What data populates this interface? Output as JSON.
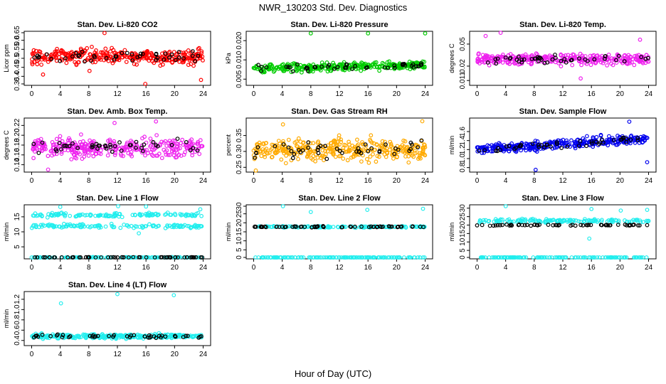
{
  "figure": {
    "title": "NWR_130203  Std. Dev. Diagnostics",
    "xlabel": "Hour of Day (UTC)"
  },
  "chart_data": [
    {
      "type": "scatter",
      "title": "Stan. Dev. Li-820 CO2",
      "ylabel": "Licor ppm",
      "xlim": [
        0,
        24
      ],
      "ylim": [
        0.35,
        0.65
      ],
      "xticks": [
        0,
        4,
        8,
        12,
        16,
        20,
        24
      ],
      "yticks": [
        "0.35",
        "0.4",
        "0.45",
        "0.5",
        "0.55",
        "0.6",
        "0.65"
      ],
      "ytick_values": [
        0.35,
        0.4,
        0.45,
        0.5,
        0.55,
        0.6,
        0.65
      ],
      "ylog": false,
      "color": "#ff0000",
      "mean": 0.51,
      "spread": 0.04,
      "n": 330,
      "trend": 0,
      "outliers": [
        {
          "x": 10.2,
          "y": 0.64
        },
        {
          "x": 15.9,
          "y": 0.35
        },
        {
          "x": 23.7,
          "y": 0.38
        },
        {
          "x": 1.6,
          "y": 0.41
        },
        {
          "x": 8.1,
          "y": 0.43
        }
      ]
    },
    {
      "type": "scatter",
      "title": "Stan. Dev. Li-820 Pressure",
      "ylabel": "kPa",
      "xlim": [
        0,
        24
      ],
      "ylim": [
        0.004,
        0.028
      ],
      "xticks": [
        0,
        4,
        8,
        12,
        16,
        20,
        24
      ],
      "yticks": [
        "0.005",
        "0.010",
        "0.020"
      ],
      "ytick_values": [
        0.005,
        0.01,
        0.02
      ],
      "ylog": true,
      "color": "#00cc00",
      "mean": 0.0072,
      "spread": 0.0011,
      "n": 330,
      "trend": 0.0012,
      "outliers": [
        {
          "x": 8.0,
          "y": 0.026
        },
        {
          "x": 16.0,
          "y": 0.026
        },
        {
          "x": 24.0,
          "y": 0.026
        }
      ]
    },
    {
      "type": "scatter",
      "title": "Stan. Dev. Li-820 Temp.",
      "ylabel": "degrees C",
      "xlim": [
        0,
        24
      ],
      "ylim": [
        0.009,
        0.085
      ],
      "xticks": [
        0,
        4,
        8,
        12,
        16,
        20,
        24
      ],
      "yticks": [
        "0.011",
        "0.02",
        "0.05"
      ],
      "ytick_values": [
        0.011,
        0.02,
        0.05
      ],
      "ylog": true,
      "color": "#ee22ee",
      "mean": 0.027,
      "spread": 0.006,
      "n": 330,
      "trend": 0,
      "outliers": [
        {
          "x": 1.2,
          "y": 0.07
        },
        {
          "x": 3.3,
          "y": 0.08
        },
        {
          "x": 14.5,
          "y": 0.012
        },
        {
          "x": 22.8,
          "y": 0.06
        }
      ]
    },
    {
      "type": "scatter",
      "title": "Stan. Dev. Amb. Box Temp.",
      "ylabel": "degrees C",
      "xlim": [
        0,
        24
      ],
      "ylim": [
        0.125,
        0.235
      ],
      "xticks": [
        0,
        4,
        8,
        12,
        16,
        20,
        24
      ],
      "yticks": [
        "0.14",
        "0.16",
        "0.18",
        "0.20",
        "0.22"
      ],
      "ytick_values": [
        0.14,
        0.16,
        0.18,
        0.2,
        0.22
      ],
      "ylog": false,
      "color": "#ee22ee",
      "mean": 0.175,
      "spread": 0.018,
      "n": 330,
      "trend": 0,
      "outliers": [
        {
          "x": 2.3,
          "y": 0.13
        },
        {
          "x": 11.6,
          "y": 0.225
        },
        {
          "x": 17.4,
          "y": 0.228
        }
      ]
    },
    {
      "type": "scatter",
      "title": "Stan. Dev. Gas Stream RH",
      "ylabel": "percent",
      "xlim": [
        0,
        24
      ],
      "ylim": [
        0.235,
        0.405
      ],
      "xticks": [
        0,
        4,
        8,
        12,
        16,
        20,
        24
      ],
      "yticks": [
        "0.25",
        "0.30",
        "0.35"
      ],
      "ytick_values": [
        0.25,
        0.3,
        0.35
      ],
      "ylog": false,
      "color": "#ffaa00",
      "mean": 0.305,
      "spread": 0.032,
      "n": 360,
      "trend": 0,
      "outliers": [
        {
          "x": 4.1,
          "y": 0.385
        },
        {
          "x": 23.6,
          "y": 0.395
        },
        {
          "x": 0.3,
          "y": 0.24
        }
      ]
    },
    {
      "type": "scatter",
      "title": "Stan. Dev. Sample Flow",
      "ylabel": "ml/min",
      "xlim": [
        0,
        24
      ],
      "ylim": [
        0.7,
        1.9
      ],
      "xticks": [
        0,
        4,
        8,
        12,
        16,
        20,
        24
      ],
      "yticks": [
        "0.8",
        "1.0",
        "1.2",
        "1.4",
        "1.6"
      ],
      "ytick_values": [
        0.8,
        1.0,
        1.2,
        1.4,
        1.6
      ],
      "ylog": false,
      "color": "#0000ee",
      "mean": 1.2,
      "spread": 0.1,
      "n": 330,
      "trend": 0.25,
      "outliers": [
        {
          "x": 8.2,
          "y": 0.75
        },
        {
          "x": 21.3,
          "y": 1.82
        },
        {
          "x": 23.8,
          "y": 0.92
        }
      ]
    },
    {
      "type": "scatter",
      "title": "Stan. Dev. Line 1 Flow",
      "ylabel": "ml/min",
      "xlim": [
        0,
        24
      ],
      "ylim": [
        1,
        19
      ],
      "xticks": [
        0,
        4,
        8,
        12,
        16,
        20,
        24
      ],
      "yticks": [
        "5",
        "10",
        "15"
      ],
      "ytick_values": [
        5,
        10,
        15
      ],
      "ylog": false,
      "color": "#22eeee",
      "bands": [
        {
          "mean": 15.6,
          "spread": 0.7,
          "n": 130
        },
        {
          "mean": 11.9,
          "spread": 0.6,
          "n": 130
        },
        {
          "mean": 1.4,
          "spread": 0.15,
          "n": 120
        }
      ],
      "black_band": 1.5,
      "outliers": [
        {
          "x": 4.0,
          "y": 18.3
        },
        {
          "x": 12.1,
          "y": 18.6
        },
        {
          "x": 16.0,
          "y": 18.4
        },
        {
          "x": 15.0,
          "y": 9.5
        },
        {
          "x": 23.6,
          "y": 17.5
        }
      ]
    },
    {
      "type": "scatter",
      "title": "Stan. Dev. Line 2 Flow",
      "ylabel": "ml/min",
      "xlim": [
        0,
        24
      ],
      "ylim": [
        0,
        30
      ],
      "xticks": [
        0,
        4,
        8,
        12,
        16,
        20,
        24
      ],
      "yticks": [
        "0",
        "5",
        "10",
        "15",
        "20",
        "25",
        "30"
      ],
      "ytick_values": [
        0,
        5,
        10,
        15,
        20,
        25,
        30
      ],
      "ylog": false,
      "color": "#22eeee",
      "bands": [
        {
          "mean": 17.8,
          "spread": 0.4,
          "n": 140
        },
        {
          "mean": 0.3,
          "spread": 0.15,
          "n": 140
        }
      ],
      "black_band": 17.8,
      "outliers": [
        {
          "x": 4.1,
          "y": 29.5
        },
        {
          "x": 8.0,
          "y": 26.0
        },
        {
          "x": 15.9,
          "y": 27.2
        },
        {
          "x": 23.7,
          "y": 27.8
        }
      ]
    },
    {
      "type": "scatter",
      "title": "Stan. Dev. Line 3 Flow",
      "ylabel": "ml/min",
      "xlim": [
        0,
        24
      ],
      "ylim": [
        0,
        32
      ],
      "xticks": [
        0,
        4,
        8,
        12,
        16,
        20,
        24
      ],
      "yticks": [
        "0",
        "5",
        "10",
        "15",
        "20",
        "25",
        "30"
      ],
      "ytick_values": [
        0,
        5,
        10,
        15,
        20,
        25,
        30
      ],
      "ylog": false,
      "color": "#22eeee",
      "bands": [
        {
          "mean": 22.5,
          "spread": 1.0,
          "n": 150
        },
        {
          "mean": 0.4,
          "spread": 0.15,
          "n": 140
        }
      ],
      "black_band": 20.0,
      "outliers": [
        {
          "x": 4.0,
          "y": 31.5
        },
        {
          "x": 15.7,
          "y": 12.0
        },
        {
          "x": 16.0,
          "y": 29.5
        },
        {
          "x": 20.1,
          "y": 28.6
        },
        {
          "x": 23.8,
          "y": 29.0
        }
      ]
    },
    {
      "type": "scatter",
      "title": "Stan. Dev. Line 4 (LT) Flow",
      "ylabel": "ml/min",
      "xlim": [
        0,
        24
      ],
      "ylim": [
        0.3,
        1.35
      ],
      "xticks": [
        0,
        4,
        8,
        12,
        16,
        20,
        24
      ],
      "yticks": [
        "0.4",
        "0.6",
        "0.8",
        "1.0",
        "1.2"
      ],
      "ytick_values": [
        0.4,
        0.6,
        0.8,
        1.0,
        1.2
      ],
      "ylog": false,
      "color": "#22eeee",
      "mean": 0.48,
      "spread": 0.04,
      "n": 300,
      "trend": 0,
      "outliers": [
        {
          "x": 4.1,
          "y": 1.12
        },
        {
          "x": 12.0,
          "y": 1.3
        },
        {
          "x": 19.9,
          "y": 1.28
        }
      ]
    }
  ]
}
